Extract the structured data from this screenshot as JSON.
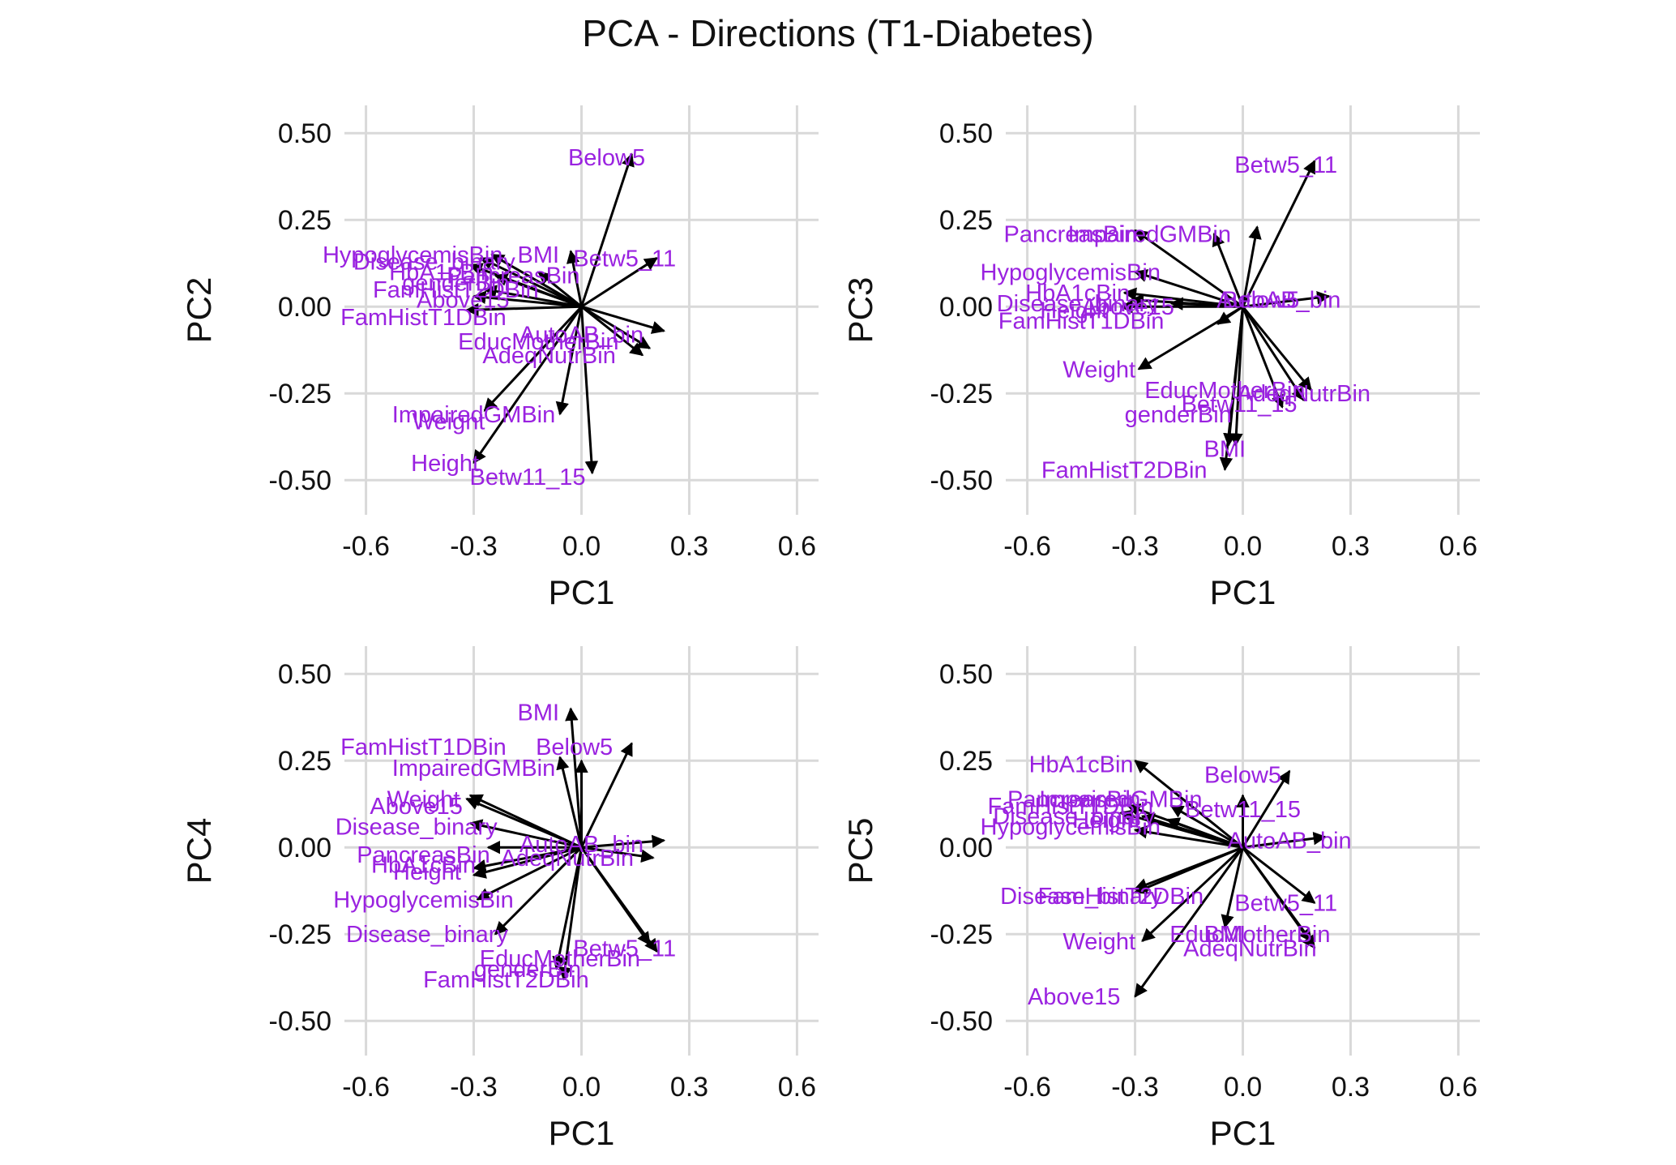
{
  "title": "PCA - Directions (T1-Diabetes)",
  "style": {
    "grid_color": "#d9d9d9",
    "arrow_color": "#000000",
    "label_color": "#9a22e0",
    "background": "#ffffff"
  },
  "chart_data": [
    {
      "type": "scatter",
      "subtype": "variable loadings (arrows from origin)",
      "xlabel": "PC1",
      "ylabel": "PC2",
      "xlim": [
        -0.66,
        0.66
      ],
      "ylim": [
        -0.6,
        0.58
      ],
      "xticks": [
        "-0.6",
        "-0.3",
        "0.0",
        "0.3",
        "0.6"
      ],
      "yticks": [
        "0.50",
        "0.25",
        "0.00",
        "-0.25",
        "-0.50"
      ],
      "grid": true,
      "arrows": [
        {
          "name": "Below5",
          "x": 0.14,
          "y": 0.44,
          "lx": 0.07,
          "ly": 0.43
        },
        {
          "name": "Betw5_11",
          "x": 0.21,
          "y": 0.14,
          "lx": 0.12,
          "ly": 0.14
        },
        {
          "name": "BMI",
          "x": -0.03,
          "y": 0.16,
          "lx": -0.12,
          "ly": 0.15
        },
        {
          "name": "EducMotherBin",
          "x": 0.19,
          "y": -0.12,
          "lx": -0.12,
          "ly": -0.1
        },
        {
          "name": "AutoAB_bin",
          "x": 0.23,
          "y": -0.07,
          "lx": 0.0,
          "ly": -0.08
        },
        {
          "name": "AdeqNutrBin",
          "x": 0.17,
          "y": -0.14,
          "lx": -0.09,
          "ly": -0.14
        },
        {
          "name": "ImpairedGMBin",
          "x": -0.27,
          "y": -0.3,
          "lx": -0.3,
          "ly": -0.31
        },
        {
          "name": "Weight",
          "x": -0.06,
          "y": -0.31,
          "lx": -0.37,
          "ly": -0.33
        },
        {
          "name": "Height",
          "x": -0.3,
          "y": -0.45,
          "lx": -0.38,
          "ly": -0.45
        },
        {
          "name": "Betw11_15",
          "x": 0.03,
          "y": -0.48,
          "lx": -0.15,
          "ly": -0.49
        },
        {
          "name": "FamHistT1DBin",
          "x": -0.32,
          "y": -0.01,
          "lx": -0.44,
          "ly": -0.03
        },
        {
          "name": "Above15",
          "x": -0.3,
          "y": 0.03,
          "lx": -0.33,
          "ly": 0.02
        },
        {
          "name": "FamHistT2DBin",
          "x": -0.27,
          "y": 0.05,
          "lx": -0.35,
          "ly": 0.05
        },
        {
          "name": "genderBin",
          "x": -0.24,
          "y": 0.09,
          "lx": -0.35,
          "ly": 0.07
        },
        {
          "name": "HbA1cBin",
          "x": -0.31,
          "y": 0.12,
          "lx": -0.39,
          "ly": 0.1
        },
        {
          "name": "Disease_binary",
          "x": -0.28,
          "y": 0.14,
          "lx": -0.41,
          "ly": 0.13
        },
        {
          "name": "HypoglycemisBin",
          "x": -0.25,
          "y": 0.15,
          "lx": -0.47,
          "ly": 0.15
        },
        {
          "name": "PancreasBin",
          "x": -0.12,
          "y": 0.1,
          "lx": -0.19,
          "ly": 0.09
        }
      ]
    },
    {
      "type": "scatter",
      "subtype": "variable loadings (arrows from origin)",
      "xlabel": "PC1",
      "ylabel": "PC3",
      "xlim": [
        -0.66,
        0.66
      ],
      "ylim": [
        -0.6,
        0.58
      ],
      "xticks": [
        "-0.6",
        "-0.3",
        "0.0",
        "0.3",
        "0.6"
      ],
      "yticks": [
        "0.50",
        "0.25",
        "0.00",
        "-0.25",
        "-0.50"
      ],
      "grid": true,
      "arrows": [
        {
          "name": "Betw5_11",
          "x": 0.2,
          "y": 0.42,
          "lx": 0.12,
          "ly": 0.41
        },
        {
          "name": "ImpairedGMBin",
          "x": -0.08,
          "y": 0.21,
          "lx": -0.26,
          "ly": 0.21
        },
        {
          "name": "PancreasBin",
          "x": -0.3,
          "y": 0.22,
          "lx": -0.48,
          "ly": 0.21
        },
        {
          "name": "HypoglycemisBin",
          "x": -0.3,
          "y": 0.1,
          "lx": -0.48,
          "ly": 0.1
        },
        {
          "name": "AutoAB_bin",
          "x": 0.24,
          "y": 0.03,
          "lx": 0.1,
          "ly": 0.02
        },
        {
          "name": "Below5",
          "x": 0.04,
          "y": 0.23,
          "lx": 0.05,
          "ly": 0.02
        },
        {
          "name": "HbA1cBin",
          "x": -0.33,
          "y": 0.04,
          "lx": -0.46,
          "ly": 0.04
        },
        {
          "name": "Disease_binary",
          "x": -0.31,
          "y": 0.02,
          "lx": -0.46,
          "ly": 0.01
        },
        {
          "name": "Height",
          "x": -0.34,
          "y": 0.0,
          "lx": -0.47,
          "ly": -0.01
        },
        {
          "name": "Above15",
          "x": -0.2,
          "y": 0.01,
          "lx": -0.32,
          "ly": 0.0
        },
        {
          "name": "FamHistT1DBin",
          "x": -0.07,
          "y": -0.05,
          "lx": -0.45,
          "ly": -0.04
        },
        {
          "name": "Weight",
          "x": -0.29,
          "y": -0.18,
          "lx": -0.4,
          "ly": -0.18
        },
        {
          "name": "EducMotherBin",
          "x": 0.17,
          "y": -0.27,
          "lx": -0.05,
          "ly": -0.24
        },
        {
          "name": "AdeqNutrBin",
          "x": 0.19,
          "y": -0.24,
          "lx": 0.17,
          "ly": -0.25
        },
        {
          "name": "Betw11_15",
          "x": 0.11,
          "y": -0.29,
          "lx": -0.01,
          "ly": -0.28
        },
        {
          "name": "genderBin",
          "x": -0.04,
          "y": -0.4,
          "lx": -0.18,
          "ly": -0.31
        },
        {
          "name": "BMI",
          "x": -0.02,
          "y": -0.4,
          "lx": -0.05,
          "ly": -0.41
        },
        {
          "name": "FamHistT2DBin",
          "x": -0.05,
          "y": -0.47,
          "lx": -0.33,
          "ly": -0.47
        }
      ]
    },
    {
      "type": "scatter",
      "subtype": "variable loadings (arrows from origin)",
      "xlabel": "PC1",
      "ylabel": "PC4",
      "xlim": [
        -0.66,
        0.66
      ],
      "ylim": [
        -0.6,
        0.58
      ],
      "xticks": [
        "-0.6",
        "-0.3",
        "0.0",
        "0.3",
        "0.6"
      ],
      "yticks": [
        "0.50",
        "0.25",
        "0.00",
        "-0.25",
        "-0.50"
      ],
      "grid": true,
      "arrows": [
        {
          "name": "BMI",
          "x": -0.03,
          "y": 0.4,
          "lx": -0.12,
          "ly": 0.39
        },
        {
          "name": "Below5",
          "x": 0.14,
          "y": 0.3,
          "lx": -0.02,
          "ly": 0.29
        },
        {
          "name": "FamHistT1DBin",
          "x": -0.06,
          "y": 0.26,
          "lx": -0.44,
          "ly": 0.29
        },
        {
          "name": "ImpairedGMBin",
          "x": 0.0,
          "y": 0.25,
          "lx": -0.3,
          "ly": 0.23
        },
        {
          "name": "Weight",
          "x": -0.31,
          "y": 0.15,
          "lx": -0.44,
          "ly": 0.14
        },
        {
          "name": "Above15",
          "x": -0.32,
          "y": 0.14,
          "lx": -0.46,
          "ly": 0.12
        },
        {
          "name": "Disease_binary",
          "x": -0.31,
          "y": 0.07,
          "lx": -0.46,
          "ly": 0.06
        },
        {
          "name": "AutoAB_bin",
          "x": 0.23,
          "y": 0.02,
          "lx": 0.0,
          "ly": 0.01
        },
        {
          "name": "PancreasBin",
          "x": -0.26,
          "y": 0.0,
          "lx": -0.44,
          "ly": -0.02
        },
        {
          "name": "AdeqNutrBin",
          "x": 0.2,
          "y": -0.03,
          "lx": -0.04,
          "ly": -0.03
        },
        {
          "name": "HbA1cBin",
          "x": -0.3,
          "y": -0.06,
          "lx": -0.44,
          "ly": -0.05
        },
        {
          "name": "Height",
          "x": -0.3,
          "y": -0.08,
          "lx": -0.43,
          "ly": -0.07
        },
        {
          "name": "HypoglycemisBin",
          "x": -0.29,
          "y": -0.15,
          "lx": -0.44,
          "ly": -0.15
        },
        {
          "name": "Disease_binary",
          "x": -0.24,
          "y": -0.25,
          "lx": -0.43,
          "ly": -0.25
        },
        {
          "name": "Betw5_11",
          "x": 0.21,
          "y": -0.3,
          "lx": 0.12,
          "ly": -0.29
        },
        {
          "name": "EducMotherBin",
          "x": 0.19,
          "y": -0.28,
          "lx": -0.06,
          "ly": -0.32
        },
        {
          "name": "genderBin",
          "x": -0.07,
          "y": -0.35,
          "lx": -0.15,
          "ly": -0.35
        },
        {
          "name": "FamHistT2DBin",
          "x": -0.05,
          "y": -0.38,
          "lx": -0.21,
          "ly": -0.38
        }
      ]
    },
    {
      "type": "scatter",
      "subtype": "variable loadings (arrows from origin)",
      "xlabel": "PC1",
      "ylabel": "PC5",
      "xlim": [
        -0.66,
        0.66
      ],
      "ylim": [
        -0.6,
        0.58
      ],
      "xticks": [
        "-0.6",
        "-0.3",
        "0.0",
        "0.3",
        "0.6"
      ],
      "yticks": [
        "0.50",
        "0.25",
        "0.00",
        "-0.25",
        "-0.50"
      ],
      "grid": true,
      "arrows": [
        {
          "name": "HbA1cBin",
          "x": -0.3,
          "y": 0.25,
          "lx": -0.45,
          "ly": 0.24
        },
        {
          "name": "Below5",
          "x": 0.13,
          "y": 0.22,
          "lx": 0.0,
          "ly": 0.21
        },
        {
          "name": "ImpairedGMBin",
          "x": -0.2,
          "y": 0.12,
          "lx": -0.34,
          "ly": 0.14
        },
        {
          "name": "PancreasBin",
          "x": -0.32,
          "y": 0.12,
          "lx": -0.47,
          "ly": 0.14
        },
        {
          "name": "FamHistT1DBin",
          "x": -0.34,
          "y": 0.1,
          "lx": -0.48,
          "ly": 0.12
        },
        {
          "name": "Betw11_15",
          "x": 0.0,
          "y": 0.15,
          "lx": 0.0,
          "ly": 0.11
        },
        {
          "name": "Disease_binary",
          "x": -0.28,
          "y": 0.09,
          "lx": -0.47,
          "ly": 0.09
        },
        {
          "name": "Height",
          "x": -0.21,
          "y": 0.08,
          "lx": -0.38,
          "ly": 0.08
        },
        {
          "name": "HypoglycemisBin",
          "x": -0.3,
          "y": 0.05,
          "lx": -0.48,
          "ly": 0.06
        },
        {
          "name": "AutoAB_bin",
          "x": 0.23,
          "y": 0.03,
          "lx": 0.13,
          "ly": 0.02
        },
        {
          "name": "Disease_binary",
          "x": -0.3,
          "y": -0.12,
          "lx": -0.45,
          "ly": -0.14
        },
        {
          "name": "FamHistT2DBin",
          "x": -0.3,
          "y": -0.13,
          "lx": -0.34,
          "ly": -0.14
        },
        {
          "name": "Betw5_11",
          "x": 0.2,
          "y": -0.16,
          "lx": 0.12,
          "ly": -0.16
        },
        {
          "name": "Weight",
          "x": -0.28,
          "y": -0.27,
          "lx": -0.4,
          "ly": -0.27
        },
        {
          "name": "EducMotherBin",
          "x": 0.19,
          "y": -0.27,
          "lx": 0.02,
          "ly": -0.25
        },
        {
          "name": "BMI",
          "x": -0.05,
          "y": -0.23,
          "lx": -0.05,
          "ly": -0.25
        },
        {
          "name": "AdeqNutrBin",
          "x": 0.2,
          "y": -0.29,
          "lx": 0.02,
          "ly": -0.29
        },
        {
          "name": "Above15",
          "x": -0.3,
          "y": -0.43,
          "lx": -0.47,
          "ly": -0.43
        }
      ]
    }
  ]
}
